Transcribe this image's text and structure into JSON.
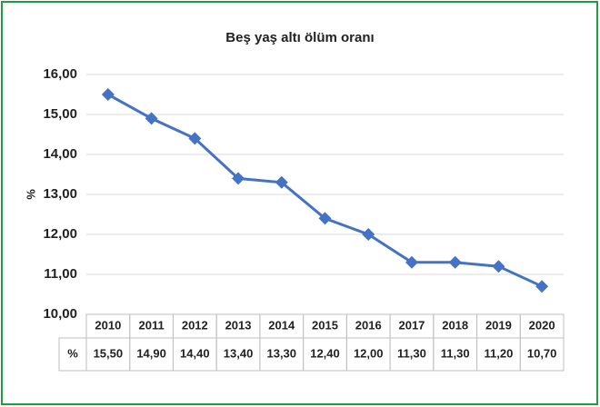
{
  "chart_data": {
    "type": "line",
    "title": "Beş yaş altı ölüm oranı",
    "y_label": "%",
    "categories": [
      "2010",
      "2011",
      "2012",
      "2013",
      "2014",
      "2015",
      "2016",
      "2017",
      "2018",
      "2019",
      "2020"
    ],
    "series": [
      {
        "name": "%",
        "color": "#4472c4",
        "values": [
          15.5,
          14.9,
          14.4,
          13.4,
          13.3,
          12.4,
          12.0,
          11.3,
          11.3,
          11.2,
          10.7
        ],
        "value_labels": [
          "15,50",
          "14,90",
          "14,40",
          "13,40",
          "13,30",
          "12,40",
          "12,00",
          "11,30",
          "11,30",
          "11,20",
          "10,70"
        ]
      }
    ],
    "ylim": [
      10,
      16
    ],
    "yticks": [
      {
        "value": 10,
        "label": "10,00"
      },
      {
        "value": 11,
        "label": "11,00"
      },
      {
        "value": 12,
        "label": "12,00"
      },
      {
        "value": 13,
        "label": "13,00"
      },
      {
        "value": 14,
        "label": "14,00"
      },
      {
        "value": 15,
        "label": "15,00"
      },
      {
        "value": 16,
        "label": "16,00"
      }
    ],
    "grid": true
  }
}
